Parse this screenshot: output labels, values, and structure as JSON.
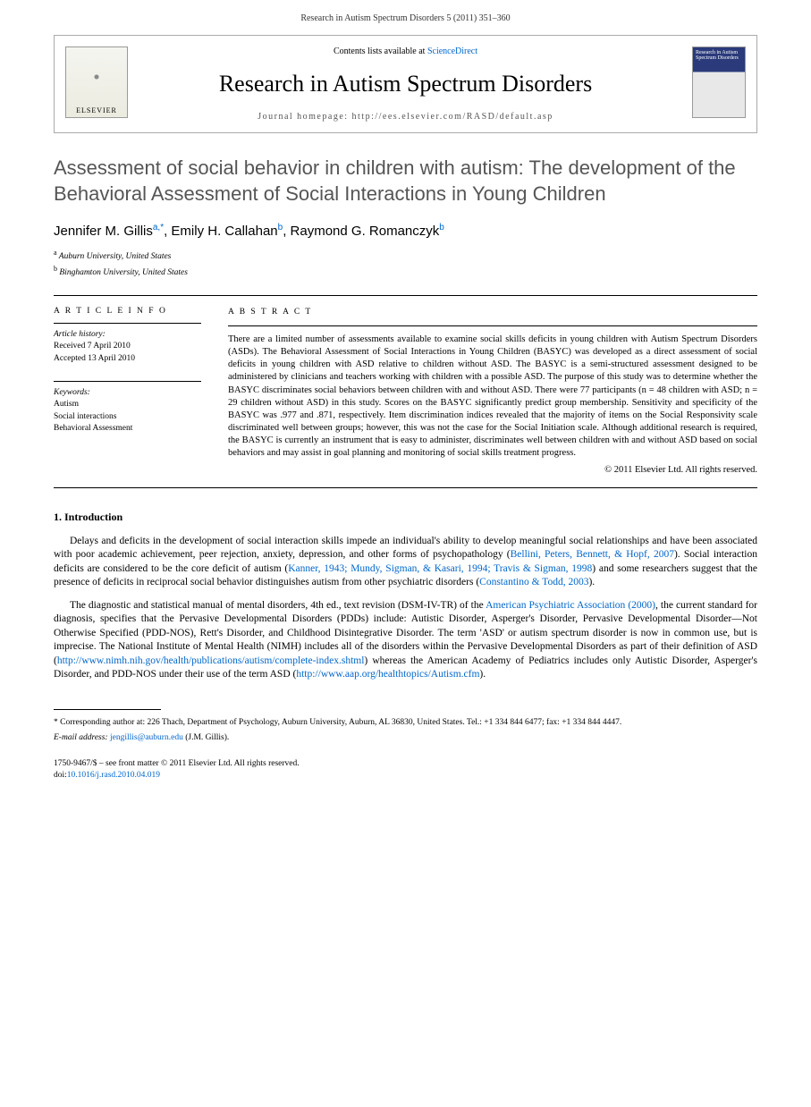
{
  "header": {
    "citation": "Research in Autism Spectrum Disorders 5 (2011) 351–360"
  },
  "journal_box": {
    "contents_line_prefix": "Contents lists available at ",
    "contents_link": "ScienceDirect",
    "journal_title": "Research in Autism Spectrum Disorders",
    "homepage_label": "Journal homepage: http://ees.elsevier.com/RASD/default.asp",
    "publisher_logo_label": "ELSEVIER",
    "cover_text": "Research in Autism Spectrum Disorders"
  },
  "article": {
    "title": "Assessment of social behavior in children with autism: The development of the Behavioral Assessment of Social Interactions in Young Children",
    "authors_html": "Jennifer M. Gillis",
    "author1_sup": "a,*",
    "author2": ", Emily H. Callahan",
    "author2_sup": "b",
    "author3": ", Raymond G. Romanczyk",
    "author3_sup": "b",
    "affiliations": [
      {
        "sup": "a",
        "text": "Auburn University, United States"
      },
      {
        "sup": "b",
        "text": "Binghamton University, United States"
      }
    ]
  },
  "article_info": {
    "heading": "A R T I C L E  I N F O",
    "history_label": "Article history:",
    "received": "Received 7 April 2010",
    "accepted": "Accepted 13 April 2010",
    "keywords_label": "Keywords:",
    "keywords": [
      "Autism",
      "Social interactions",
      "Behavioral Assessment"
    ]
  },
  "abstract": {
    "heading": "A B S T R A C T",
    "text": "There are a limited number of assessments available to examine social skills deficits in young children with Autism Spectrum Disorders (ASDs). The Behavioral Assessment of Social Interactions in Young Children (BASYC) was developed as a direct assessment of social deficits in young children with ASD relative to children without ASD. The BASYC is a semi-structured assessment designed to be administered by clinicians and teachers working with children with a possible ASD. The purpose of this study was to determine whether the BASYC discriminates social behaviors between children with and without ASD. There were 77 participants (n = 48 children with ASD; n = 29 children without ASD) in this study. Scores on the BASYC significantly predict group membership. Sensitivity and specificity of the BASYC was .977 and .871, respectively. Item discrimination indices revealed that the majority of items on the Social Responsivity scale discriminated well between groups; however, this was not the case for the Social Initiation scale. Although additional research is required, the BASYC is currently an instrument that is easy to administer, discriminates well between children with and without ASD based on social behaviors and may assist in goal planning and monitoring of social skills treatment progress.",
    "copyright": "© 2011 Elsevier Ltd. All rights reserved."
  },
  "sections": {
    "intro_heading": "1. Introduction",
    "para1_a": "Delays and deficits in the development of social interaction skills impede an individual's ability to develop meaningful social relationships and have been associated with poor academic achievement, peer rejection, anxiety, depression, and other forms of psychopathology (",
    "para1_cite1": "Bellini, Peters, Bennett, & Hopf, 2007",
    "para1_b": "). Social interaction deficits are considered to be the core deficit of autism (",
    "para1_cite2": "Kanner, 1943; Mundy, Sigman, & Kasari, 1994; Travis & Sigman, 1998",
    "para1_c": ") and some researchers suggest that the presence of deficits in reciprocal social behavior distinguishes autism from other psychiatric disorders (",
    "para1_cite3": "Constantino & Todd, 2003",
    "para1_d": ").",
    "para2_a": "The diagnostic and statistical manual of mental disorders, 4th ed., text revision (DSM-IV-TR) of the ",
    "para2_cite1": "American Psychiatric Association (2000)",
    "para2_b": ", the current standard for diagnosis, specifies that the Pervasive Developmental Disorders (PDDs) include: Autistic Disorder, Asperger's Disorder, Pervasive Developmental Disorder—Not Otherwise Specified (PDD-NOS), Rett's Disorder, and Childhood Disintegrative Disorder. The term 'ASD' or autism spectrum disorder is now in common use, but is imprecise. The National Institute of Mental Health (NIMH) includes all of the disorders within the Pervasive Developmental Disorders as part of their definition of ASD (",
    "para2_link1": "http://www.nimh.nih.gov/health/publications/autism/complete-index.shtml",
    "para2_c": ") whereas the American Academy of Pediatrics includes only Autistic Disorder, Asperger's Disorder, and PDD-NOS under their use of the term ASD (",
    "para2_link2": "http://www.aap.org/healthtopics/Autism.cfm",
    "para2_d": ")."
  },
  "corresponding": {
    "marker": "*",
    "text_a": " Corresponding author at: 226 Thach, Department of Psychology, Auburn University, Auburn, AL 36830, United States. Tel.: +1 334 844 6477; fax: +1 334 844 4447.",
    "email_label": "E-mail address: ",
    "email": "jengillis@auburn.edu",
    "email_suffix": " (J.M. Gillis)."
  },
  "footer": {
    "issn_line": "1750-9467/$ – see front matter © 2011 Elsevier Ltd. All rights reserved.",
    "doi_prefix": "doi:",
    "doi": "10.1016/j.rasd.2010.04.019"
  },
  "colors": {
    "link": "#0066cc",
    "text": "#000000",
    "title_gray": "#555555",
    "border": "#000000"
  }
}
